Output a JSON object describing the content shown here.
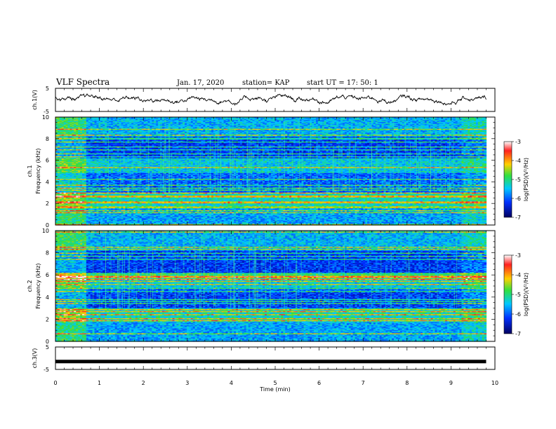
{
  "header": {
    "title": "VLF Spectra",
    "date": "Jan. 17, 2020",
    "station": "station= KAP",
    "start": "start  UT =   17: 50: 1"
  },
  "chart_data": [
    {
      "type": "line",
      "panel": "ch1-waveform",
      "ylabel": "ch.1(V)",
      "ylim": [
        -5,
        5
      ],
      "yticks": [
        "5",
        "-5"
      ],
      "x_range_min": [
        0,
        9.8
      ],
      "description_values": "noisy waveform around 0 V, range roughly -2 to 3"
    },
    {
      "type": "heatmap",
      "panel": "ch1-spectrogram",
      "ylabel_top": "ch.1",
      "ylabel": "Frequency (kHz)",
      "ylim": [
        0,
        10
      ],
      "yticks": [
        "0",
        "2",
        "4",
        "6",
        "8",
        "10"
      ],
      "colorbar": {
        "label": "log(PSD)(V²/Hz)",
        "ticks": [
          "-3",
          "-4",
          "-5",
          "-6",
          "-7"
        ]
      },
      "segments_min": [
        0,
        0.7,
        9.25,
        9.8
      ]
    },
    {
      "type": "heatmap",
      "panel": "ch2-spectrogram",
      "ylabel_top": "ch.2",
      "ylabel": "Frequency (kHz)",
      "ylim": [
        0,
        10
      ],
      "yticks": [
        "0",
        "2",
        "4",
        "6",
        "8",
        "10"
      ],
      "colorbar": {
        "label": "log(PSD)(V²/Hz)",
        "ticks": [
          "-3",
          "-4",
          "-5",
          "-6",
          "-7"
        ]
      },
      "segments_min": [
        0,
        0.7,
        9.25,
        9.8
      ]
    },
    {
      "type": "line",
      "panel": "ch3-waveform",
      "ylabel": "ch.3(V)",
      "ylim": [
        -5,
        5
      ],
      "yticks": [
        "5",
        "-5"
      ],
      "constant_value": -1.5
    }
  ],
  "xaxis": {
    "label": "Time  (min)",
    "ticks": [
      "0",
      "1",
      "2",
      "3",
      "4",
      "5",
      "6",
      "7",
      "8",
      "9",
      "10"
    ],
    "range": [
      0,
      10
    ]
  }
}
